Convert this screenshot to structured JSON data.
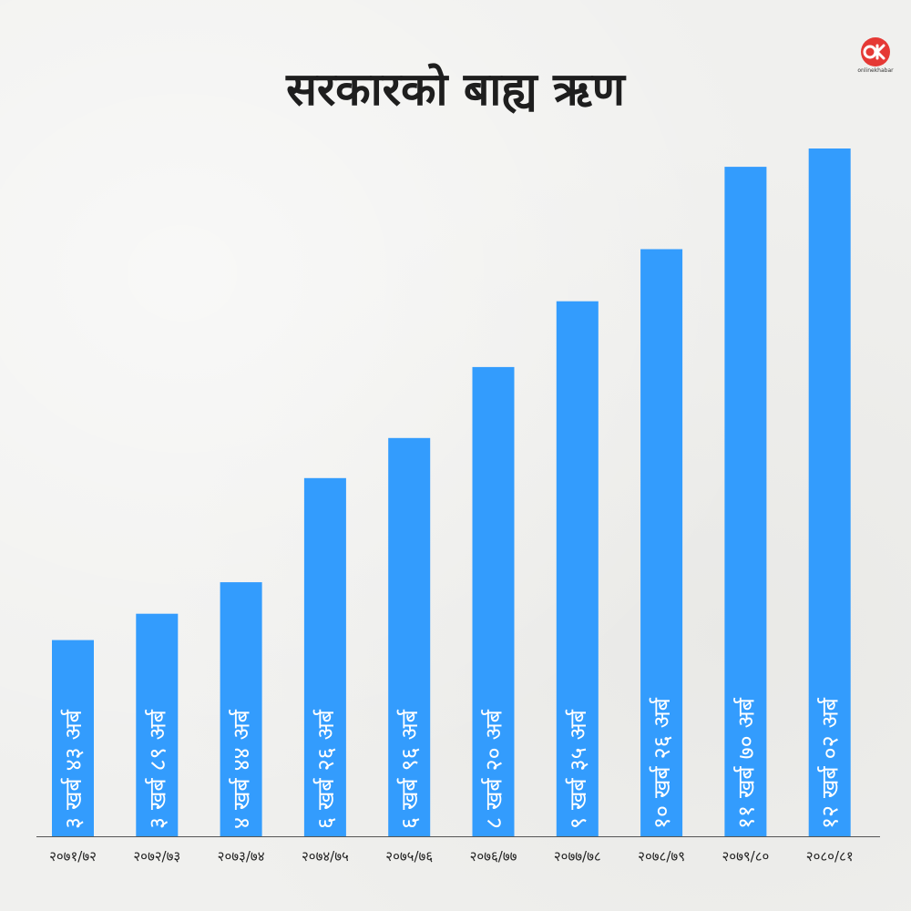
{
  "chart_data": {
    "type": "bar",
    "title": "सरकारको बाह्य ऋण",
    "categories": [
      "२०७१/७२",
      "२०७२/७३",
      "२०७३/७४",
      "२०७४/७५",
      "२०७५/७६",
      "२०७६/७७",
      "२०७७/७८",
      "२०७८/७९",
      "२०७९/८०",
      "२०८०/८१"
    ],
    "values": [
      3.43,
      3.89,
      4.44,
      6.26,
      6.96,
      8.2,
      9.35,
      10.26,
      11.7,
      12.02
    ],
    "value_labels": [
      "३ खर्ब ४३ अर्ब",
      "३ खर्ब ८९ अर्ब",
      "४ खर्ब ४४ अर्ब",
      "६ खर्ब २६ अर्ब",
      "६ खर्ब ९६ अर्ब",
      "८ खर्ब २० अर्ब",
      "९ खर्ब ३५ अर्ब",
      "१० खर्ब २६ अर्ब",
      "११ खर्ब ७० अर्ब",
      "१२ खर्ब ०२ अर्ब"
    ],
    "xlabel": "",
    "ylabel": "",
    "ylim": [
      0,
      12.02
    ],
    "grid": false,
    "bar_color": "#339cfd"
  },
  "brand": {
    "logo_text": "onlinekhabar",
    "logo_icon": "ok-logo-icon",
    "logo_color": "#e53935"
  }
}
